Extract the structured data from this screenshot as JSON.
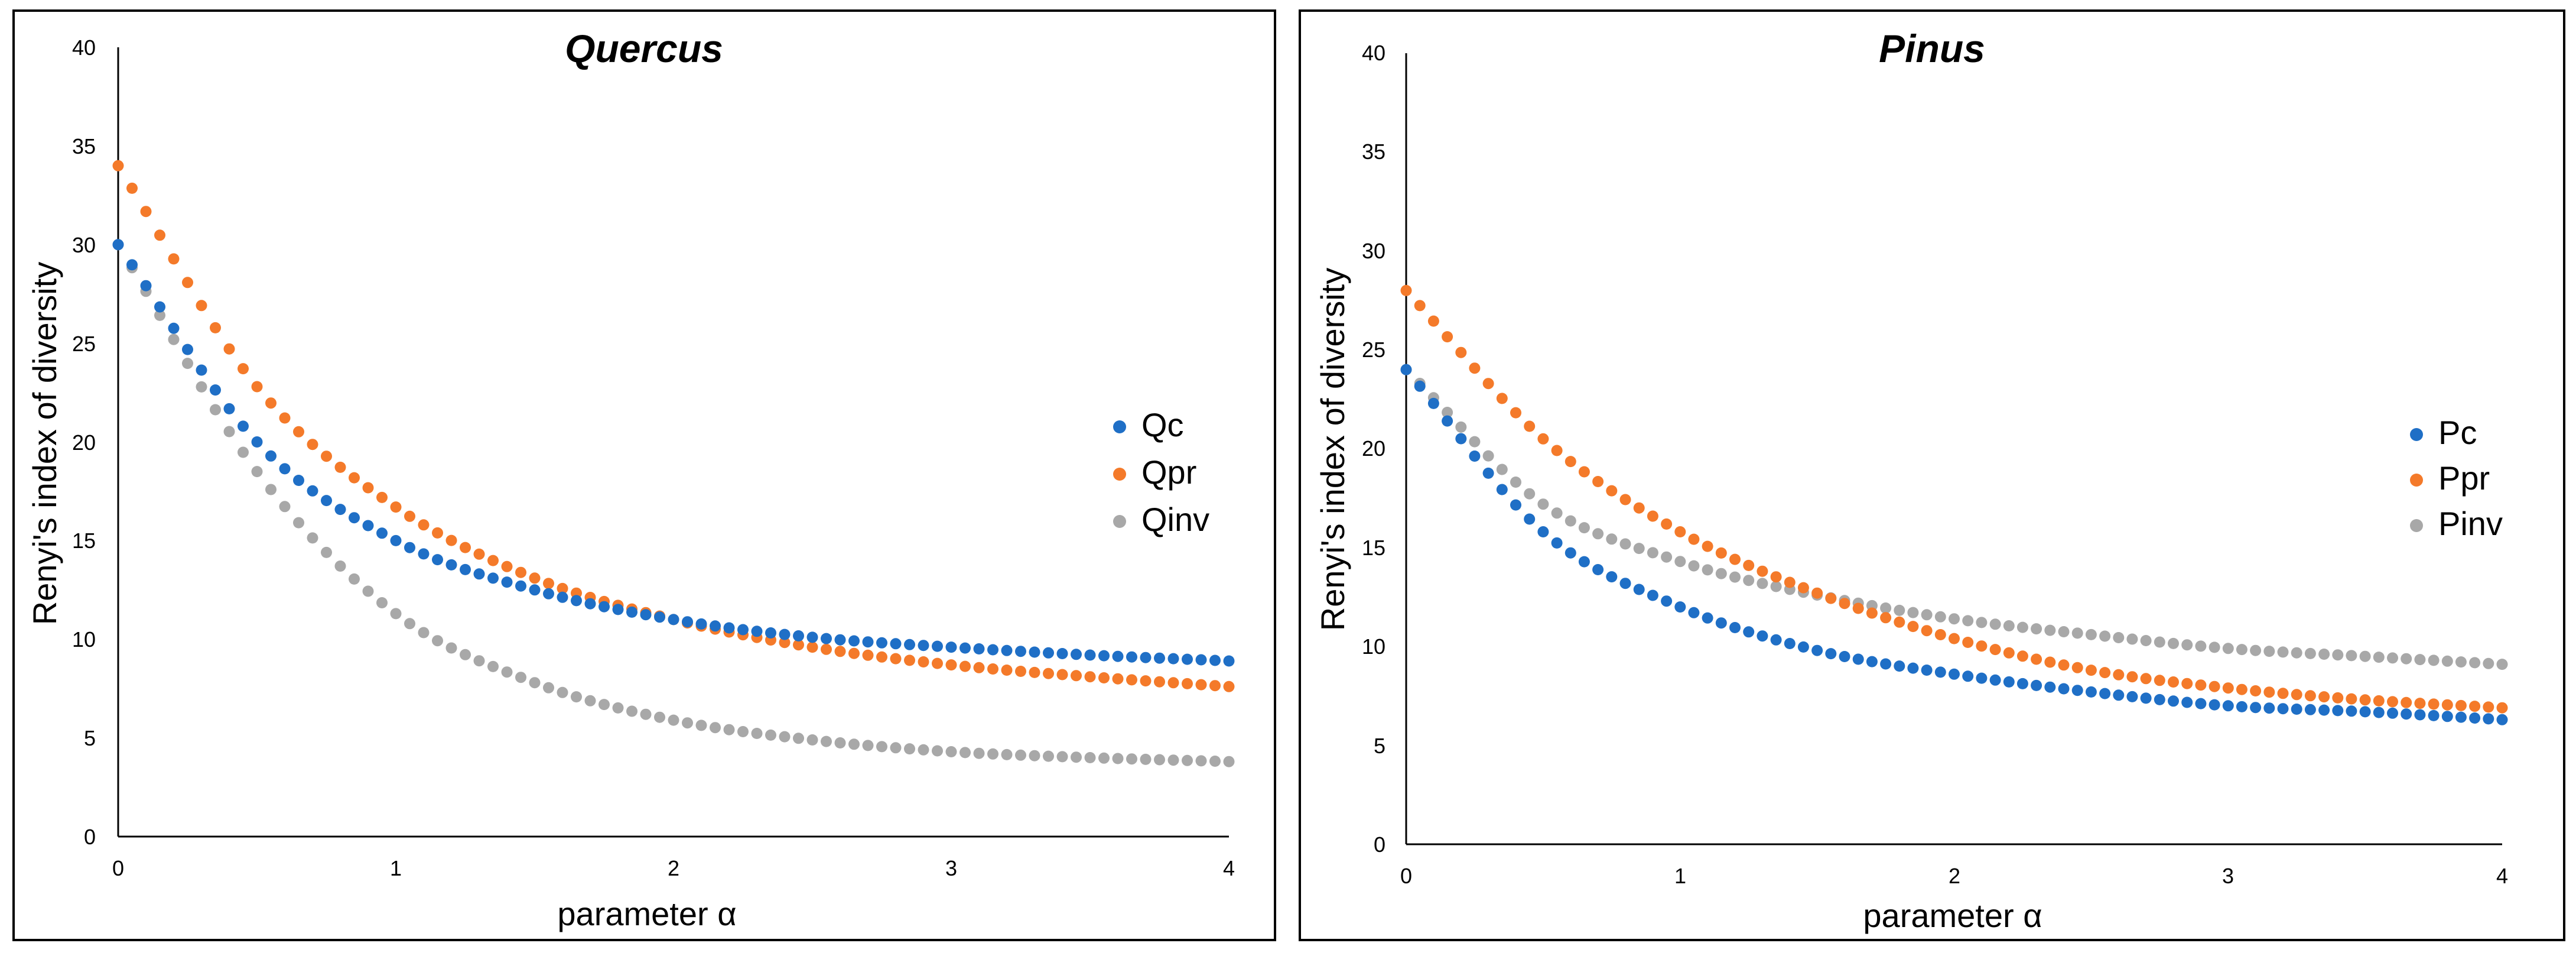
{
  "colors": {
    "Qc": "#1f6fc6",
    "Qpr": "#f47a2a",
    "Qinv": "#a8a8a8",
    "Pc": "#1f6fc6",
    "Ppr": "#f47a2a",
    "Pinv": "#a8a8a8",
    "frame": "#000000",
    "axis": "#000000",
    "text": "#000000"
  },
  "chart_data": [
    {
      "type": "scatter",
      "title": "Quercus",
      "title_style": "bold-italic",
      "xlabel": "parameter α",
      "ylabel": "Renyi's index of diversity",
      "xlim": [
        0,
        4
      ],
      "ylim": [
        0,
        40
      ],
      "xticks": [
        0,
        1,
        2,
        3,
        4
      ],
      "yticks": [
        0,
        5,
        10,
        15,
        20,
        25,
        30,
        35,
        40
      ],
      "grid": false,
      "legend": "right",
      "x": [
        0,
        0.5,
        1,
        1.5,
        2,
        2.5,
        3,
        3.5,
        4
      ],
      "series": [
        {
          "name": "Qc",
          "values": [
            30,
            20,
            15,
            12.5,
            11,
            10.1,
            9.6,
            9.2,
            8.9
          ]
        },
        {
          "name": "Qpr",
          "values": [
            34,
            22.8,
            16.7,
            13.1,
            11,
            9.6,
            8.7,
            8.1,
            7.6
          ]
        },
        {
          "name": "Qinv",
          "values": [
            30,
            18.5,
            11.3,
            7.8,
            5.9,
            4.9,
            4.3,
            4,
            3.8
          ]
        }
      ]
    },
    {
      "type": "scatter",
      "title": "Pinus",
      "title_style": "bold-italic",
      "xlabel": "parameter α",
      "ylabel": "Renyi's index of diversity",
      "xlim": [
        0,
        4
      ],
      "ylim": [
        0,
        40
      ],
      "xticks": [
        0,
        1,
        2,
        3,
        4
      ],
      "yticks": [
        0,
        5,
        10,
        15,
        20,
        25,
        30,
        35,
        40
      ],
      "grid": false,
      "legend": "right",
      "x": [
        0,
        0.5,
        1,
        1.5,
        2,
        2.5,
        3,
        3.5,
        4
      ],
      "series": [
        {
          "name": "Pc",
          "values": [
            24,
            15.8,
            12,
            9.8,
            8.6,
            7.7,
            7,
            6.7,
            6.3
          ]
        },
        {
          "name": "Ppr",
          "values": [
            28,
            20.5,
            15.8,
            12.7,
            10.4,
            8.8,
            7.9,
            7.3,
            6.9
          ]
        },
        {
          "name": "Pinv",
          "values": [
            24,
            17.2,
            14.3,
            12.6,
            11.4,
            10.6,
            9.9,
            9.5,
            9.1
          ]
        }
      ]
    }
  ]
}
